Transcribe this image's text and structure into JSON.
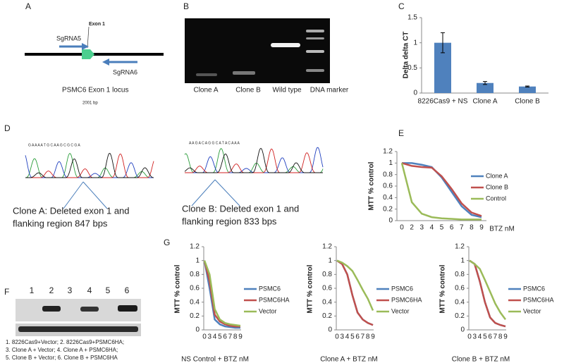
{
  "panel_labels": [
    "A",
    "B",
    "C",
    "D",
    "E",
    "F",
    "G"
  ],
  "diagram_a": {
    "sgrna5": "SgRNA5",
    "exon": "Exon 1",
    "sgrna6": "SgRNA6",
    "locus": "PSMC6 Exon 1 locus",
    "size": "2001 bp"
  },
  "gel_b": {
    "lanes": [
      "Clone A",
      "Clone B",
      "Wild type",
      "DNA marker"
    ]
  },
  "chromatograms_d": [
    {
      "sequence": "G A A A A T G C A A G C G C G A",
      "caption": [
        "Clone A: Deleted exon 1 and",
        "flanking region 847 bps"
      ]
    },
    {
      "sequence": "A A G A C A G G C A T A C A A A",
      "caption": [
        "Clone B: Deleted exon 1 and",
        "flanking region 833 bps"
      ]
    }
  ],
  "blot_f": {
    "lanes": [
      "1",
      "2",
      "3",
      "4",
      "5",
      "6"
    ],
    "legend": [
      "1. 8226Cas9+Vector; 2. 8226Cas9+PSMC6HA;",
      "3. Clone A + Vector; 4. Clone A + PSMC6HA;",
      "5. Clone B + Vector; 6. Clone  B + PSMC6HA"
    ]
  },
  "chart_data": [
    {
      "type": "bar",
      "ylabel": "Delta delta CT",
      "categories": [
        "8226Cas9 + NS",
        "Clone A",
        "Clone B"
      ],
      "values": [
        1,
        0.2,
        0.13
      ],
      "errors": [
        0.2,
        0.03,
        0.01
      ],
      "color": "#4f81bd",
      "ylim": [
        0,
        1.5
      ],
      "yticks": [
        0,
        0.5,
        1,
        1.5
      ]
    },
    {
      "type": "line",
      "xlabel": "BTZ nM",
      "ylabel": "MTT % control",
      "legend": "right",
      "categories": [
        "0",
        "2",
        "3",
        "4",
        "5",
        "6",
        "7",
        "8",
        "9"
      ],
      "series": [
        {
          "name": "Clone A",
          "color": "#4f81bd",
          "values": [
            1,
            1,
            0.97,
            0.93,
            0.75,
            0.5,
            0.25,
            0.1,
            0.06
          ]
        },
        {
          "name": "Clone B",
          "color": "#c0504d",
          "values": [
            1,
            0.95,
            0.93,
            0.92,
            0.77,
            0.55,
            0.3,
            0.14,
            0.08
          ]
        },
        {
          "name": "Control",
          "color": "#9bbb59",
          "values": [
            1,
            0.32,
            0.12,
            0.06,
            0.04,
            0.03,
            0.02,
            0.02,
            0.02
          ]
        }
      ],
      "ylim": [
        0,
        1.2
      ],
      "yticks": [
        0,
        0.2,
        0.4,
        0.6,
        0.8,
        1,
        1.2
      ]
    },
    {
      "type": "line",
      "xlabel": "NS Control + BTZ nM",
      "ylabel": "MTT % control",
      "legend": "right",
      "categories": [
        "0",
        "3",
        "4",
        "5",
        "6",
        "7",
        "8",
        "9"
      ],
      "series": [
        {
          "name": "PSMC6",
          "color": "#4f81bd",
          "values": [
            1,
            0.6,
            0.15,
            0.08,
            0.05,
            0.04,
            0.03,
            0.03
          ]
        },
        {
          "name": "PSMC6HA",
          "color": "#c0504d",
          "values": [
            1,
            0.7,
            0.22,
            0.12,
            0.08,
            0.06,
            0.05,
            0.05
          ]
        },
        {
          "name": "Vector",
          "color": "#9bbb59",
          "values": [
            1,
            0.8,
            0.3,
            0.15,
            0.1,
            0.08,
            0.07,
            0.06
          ]
        }
      ],
      "ylim": [
        0,
        1.2
      ],
      "yticks": [
        0,
        0.2,
        0.4,
        0.6,
        0.8,
        1,
        1.2
      ]
    },
    {
      "type": "line",
      "xlabel": "Clone A + BTZ nM",
      "ylabel": "MTT % control",
      "legend": "right",
      "categories": [
        "0",
        "3",
        "4",
        "5",
        "6",
        "7",
        "8",
        "9"
      ],
      "series": [
        {
          "name": "PSMC6",
          "color": "#4f81bd",
          "values": [
            1,
            0.95,
            0.8,
            0.5,
            0.25,
            0.15,
            0.1,
            0.07
          ]
        },
        {
          "name": "PSMC6HA",
          "color": "#c0504d",
          "values": [
            1,
            0.95,
            0.8,
            0.5,
            0.25,
            0.15,
            0.1,
            0.07
          ]
        },
        {
          "name": "Vector",
          "color": "#9bbb59",
          "values": [
            1,
            0.97,
            0.92,
            0.85,
            0.72,
            0.58,
            0.45,
            0.28
          ]
        }
      ],
      "ylim": [
        0,
        1.2
      ],
      "yticks": [
        0,
        0.2,
        0.4,
        0.6,
        0.8,
        1,
        1.2
      ]
    },
    {
      "type": "line",
      "xlabel": "Clone B + BTZ nM",
      "ylabel": "MTT % control",
      "legend": "right",
      "categories": [
        "0",
        "3",
        "4",
        "5",
        "6",
        "7",
        "8",
        "9"
      ],
      "series": [
        {
          "name": "PSMC6",
          "color": "#4f81bd",
          "values": [
            1,
            0.95,
            0.7,
            0.4,
            0.18,
            0.1,
            0.07,
            0.05
          ]
        },
        {
          "name": "PSMC6HA",
          "color": "#c0504d",
          "values": [
            1,
            0.95,
            0.7,
            0.4,
            0.18,
            0.1,
            0.07,
            0.05
          ]
        },
        {
          "name": "Vector",
          "color": "#9bbb59",
          "values": [
            1,
            0.95,
            0.88,
            0.72,
            0.55,
            0.38,
            0.25,
            0.15
          ]
        }
      ],
      "ylim": [
        0,
        1.2
      ],
      "yticks": [
        0,
        0.2,
        0.4,
        0.6,
        0.8,
        1,
        1.2
      ]
    }
  ]
}
